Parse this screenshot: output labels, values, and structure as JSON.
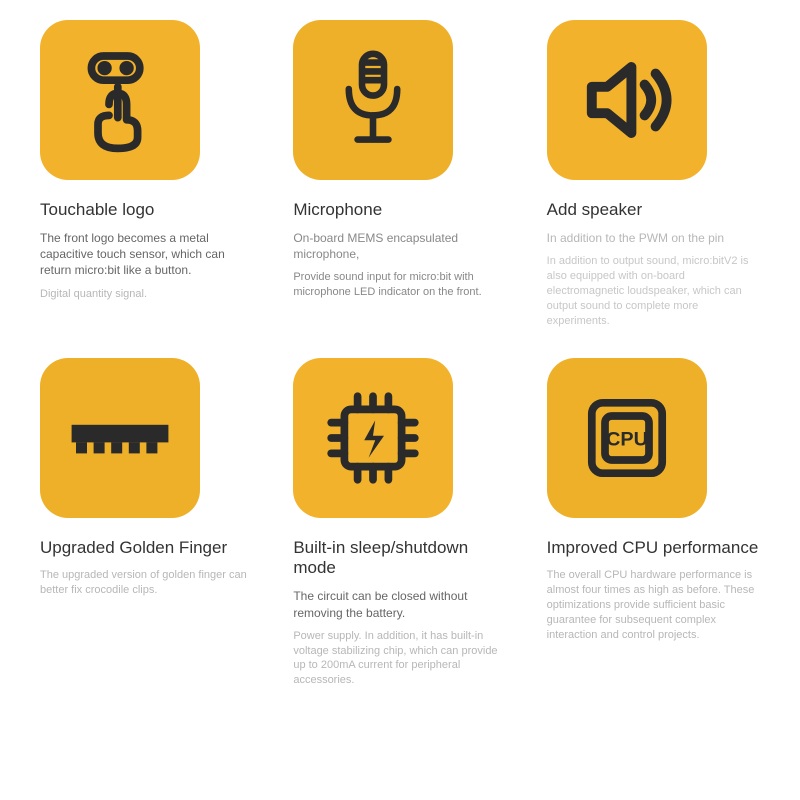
{
  "layout": {
    "background": "#ffffff",
    "tile_bg": "#f2b22c",
    "tile_bg_alt": "#eeb028",
    "icon_stroke": "#2a2a2a",
    "tile_radius": 28,
    "title_color": "#333333",
    "desc_color_dark": "#666666",
    "desc_color_mid": "#888888",
    "desc_color_light": "#b7b7b7"
  },
  "features": [
    {
      "title": "Touchable logo",
      "desc1": "The front logo becomes a metal capacitive touch sensor, which can return micro:bit like a button.",
      "desc2": "Digital quantity signal.",
      "desc1_color": "#666666",
      "desc2_color": "#b7b7b7",
      "icon": "touch"
    },
    {
      "title": "Microphone",
      "desc1": "On-board MEMS encapsulated microphone,",
      "desc2": "Provide sound input for micro:bit with microphone LED indicator on the front.",
      "desc1_color": "#888888",
      "desc2_color": "#888888",
      "icon": "mic"
    },
    {
      "title": "Add speaker",
      "desc1": "In addition to the PWM on the pin",
      "desc2": "In addition to output sound, micro:bitV2 is also equipped with on-board electromagnetic loudspeaker, which can output sound to complete more experiments.",
      "desc1_color": "#b7b7b7",
      "desc2_color": "#c7c7c7",
      "icon": "speaker"
    },
    {
      "title": "Upgraded Golden Finger",
      "desc1": "",
      "desc2": "The upgraded version of golden finger can better fix crocodile clips.",
      "desc1_color": "#b7b7b7",
      "desc2_color": "#b7b7b7",
      "icon": "finger"
    },
    {
      "title": "Built-in sleep/shutdown mode",
      "desc1": "The circuit can be closed without removing the battery.",
      "desc2": "Power supply. In addition, it has built-in voltage stabilizing chip, which can provide up to 200mA current for peripheral accessories.",
      "desc1_color": "#666666",
      "desc2_color": "#b7b7b7",
      "icon": "chip"
    },
    {
      "title": "Improved CPU performance",
      "desc1": "",
      "desc2": "The overall CPU hardware performance is almost four times as high as before. These optimizations provide sufficient basic guarantee for subsequent complex interaction and control projects.",
      "desc1_color": "#b7b7b7",
      "desc2_color": "#b7b7b7",
      "icon": "cpu"
    }
  ]
}
